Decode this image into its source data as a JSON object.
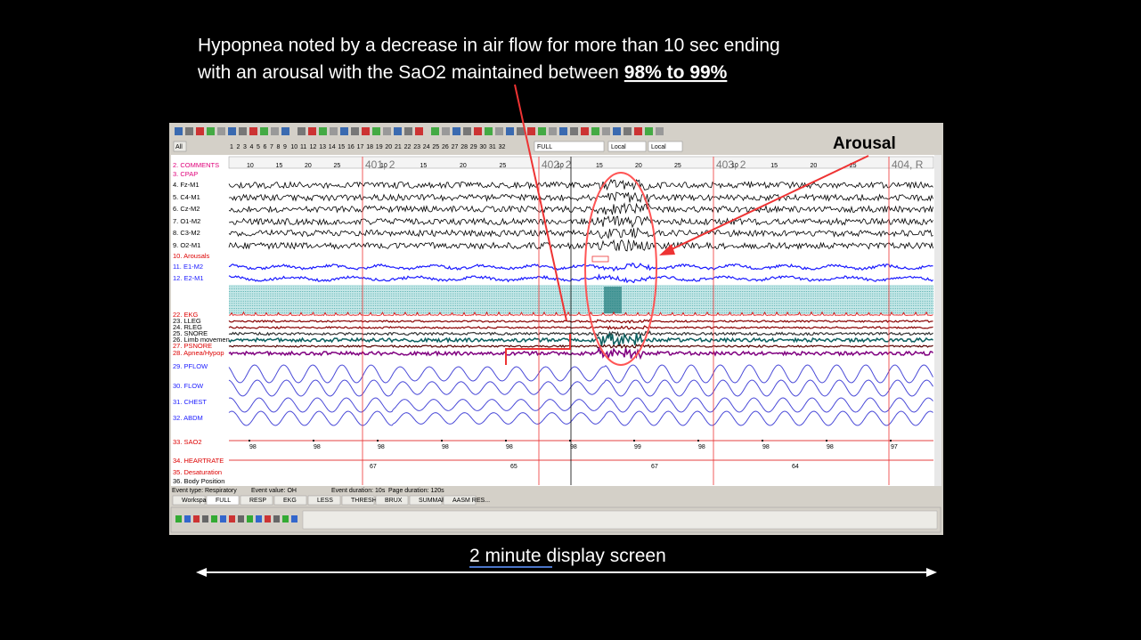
{
  "caption": {
    "line1": "Hypopnea noted by a decrease in air flow for more than 10 sec ending",
    "line2": "with an arousal with the SaO2 maintained between",
    "emphasis": "98% to 99%"
  },
  "arousal_label": "Arousal",
  "footer": {
    "underlined": "2 minute",
    "rest": "display screen"
  },
  "software": {
    "toolbar": {
      "all_button": "All",
      "page_buttons": [
        1,
        2,
        3,
        4,
        5,
        6,
        7,
        8,
        9,
        10,
        11,
        12,
        13,
        14,
        15,
        16,
        17,
        18,
        19,
        20,
        21,
        22,
        23,
        24,
        25,
        26,
        27,
        28,
        29,
        30,
        31,
        32
      ],
      "montage": "FULL",
      "scale_1": "Local",
      "scale_2": "Local"
    },
    "epochs": [
      {
        "label": "",
        "ticks": [
          "10",
          "15",
          "20",
          "25"
        ]
      },
      {
        "label": "401, 2",
        "ticks": [
          "10",
          "15",
          "20",
          "25"
        ]
      },
      {
        "label": "402, 2",
        "ticks": [
          "10",
          "15",
          "20",
          "25"
        ]
      },
      {
        "label": "403, 2",
        "ticks": [
          "10",
          "15",
          "20",
          "25"
        ]
      },
      {
        "label": "404, R",
        "ticks": []
      }
    ],
    "channels": [
      "2. COMMENTS",
      "3. CPAP",
      "4. Fz-M1",
      "5. C4-M1",
      "6. Cz-M2",
      "7. O1-M2",
      "8. C3-M2",
      "9. O2-M1",
      "10. Arousals",
      "11. E1-M2",
      "12. E2-M1",
      "22. EKG",
      "23. LLEG",
      "24. RLEG",
      "25. SNORE",
      "26. Limb movemen",
      "27. PSNORE",
      "28. Apnea/Hypop",
      "29. PFLOW",
      "30. FLOW",
      "31. CHEST",
      "32. ABDM",
      "33. SAO2",
      "34. HEARTRATE",
      "35. Desaturation",
      "36. Body Position"
    ],
    "sao2_values": [
      98,
      98,
      98,
      98,
      98,
      98,
      99,
      98,
      98,
      98,
      97
    ],
    "heartrate_values": [
      67,
      65,
      67,
      64
    ],
    "status": [
      "Event type: Respiratory",
      "Event value: OH",
      "Event duration: 10s",
      "Page duration: 120s"
    ],
    "tabs": [
      "Workspace",
      "FULL",
      "RESP",
      "EKG",
      "LESS",
      "THRESH...",
      "BRUX",
      "SUMMARY",
      "AASM RES..."
    ]
  }
}
